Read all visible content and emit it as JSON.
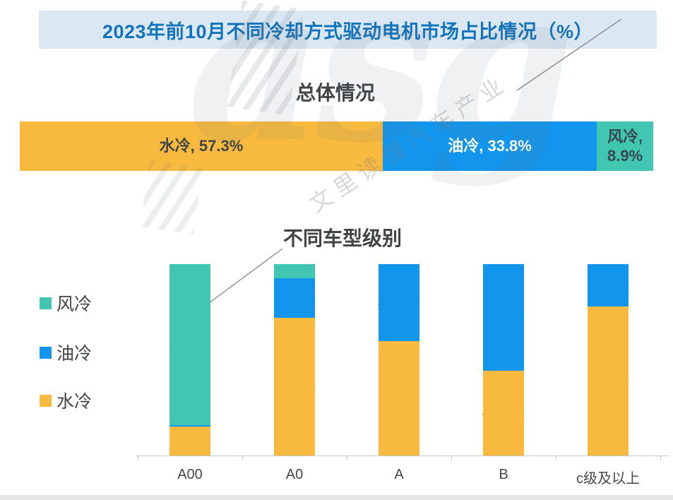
{
  "page": {
    "title": "2023年前10月不同冷却方式驱动电机市场占比情况（%）"
  },
  "watermark": {
    "logo_text": "asg",
    "tagline": "文里读懂汽车产业"
  },
  "colors": {
    "air_cooling": "#41C6B2",
    "oil_cooling": "#1295EC",
    "water_cooling": "#F7BA3E",
    "title_text": "#1273BD",
    "title_background": "#DBE8F4",
    "label_dark": "#3F4444",
    "label_light": "#FFFFFF",
    "axis": "#C9C9C9",
    "leader_line": "#8C8C8C"
  },
  "legend": [
    {
      "label": "风冷",
      "color": "#41C6B2"
    },
    {
      "label": "油冷",
      "color": "#1295EC"
    },
    {
      "label": "水冷",
      "color": "#F7BA3E"
    }
  ],
  "chart_data": [
    {
      "type": "bar",
      "subtype": "stacked-horizontal-100",
      "title": "总体情况",
      "unit": "%",
      "series": [
        {
          "name": "水冷",
          "value": 57.3,
          "label": "水冷, 57.3%",
          "color": "#F7BA3E",
          "text_color": "#3F4444"
        },
        {
          "name": "油冷",
          "value": 33.8,
          "label": "油冷, 33.8%",
          "color": "#1295EC",
          "text_color": "#FFFFFF"
        },
        {
          "name": "风冷",
          "value": 8.9,
          "label": "风冷, 8.9%",
          "color": "#41C6B2",
          "text_color": "#37474F"
        }
      ]
    },
    {
      "type": "bar",
      "subtype": "stacked-column-100",
      "title": "不同车型级别",
      "unit": "%",
      "categories": [
        "A00",
        "A0",
        "A",
        "B",
        "c级及以上"
      ],
      "series": [
        {
          "name": "风冷",
          "color": "#41C6B2",
          "values": [
            84.0,
            7.4,
            0,
            0,
            0
          ]
        },
        {
          "name": "油冷",
          "color": "#1295EC",
          "values": [
            0.8,
            20.7,
            40.3,
            55.9,
            22.0
          ]
        },
        {
          "name": "水冷",
          "color": "#F7BA3E",
          "values": [
            15.2,
            71.9,
            59.7,
            44.1,
            78.0
          ]
        }
      ],
      "ylim": [
        0,
        100
      ],
      "grid": false,
      "legend_position": "left"
    }
  ]
}
